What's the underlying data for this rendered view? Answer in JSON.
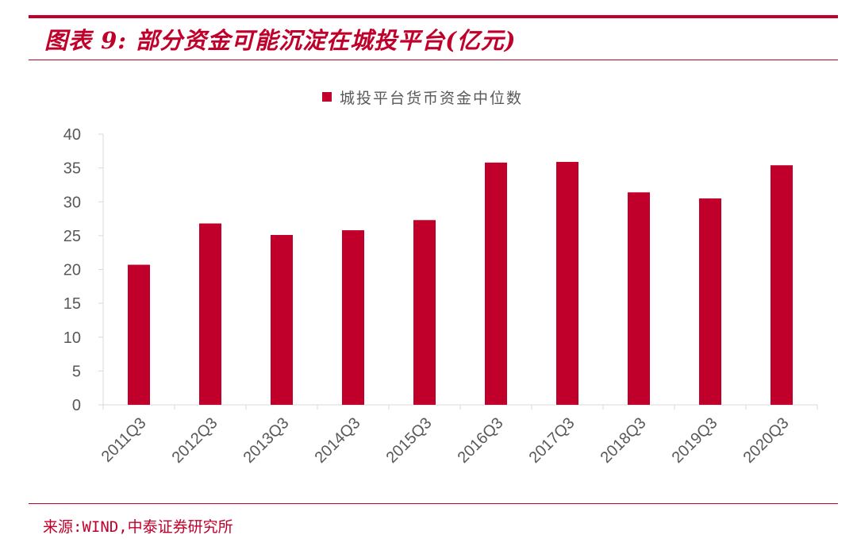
{
  "header": {
    "title": "图表 9:  部分资金可能沉淀在城投平台(亿元)"
  },
  "footer": {
    "source": "来源:WIND,中泰证券研究所"
  },
  "colors": {
    "accent": "#c0002a",
    "bar": "#c0002a",
    "axis": "#d9d9d9",
    "text": "#595959"
  },
  "chart_data": {
    "type": "bar",
    "title": "",
    "xlabel": "",
    "ylabel": "",
    "categories": [
      "2011Q3",
      "2012Q3",
      "2013Q3",
      "2014Q3",
      "2015Q3",
      "2016Q3",
      "2017Q3",
      "2018Q3",
      "2019Q3",
      "2020Q3"
    ],
    "series": [
      {
        "name": "城投平台货币资金中位数",
        "values": [
          20.7,
          26.8,
          25.1,
          25.8,
          27.3,
          35.8,
          35.9,
          31.4,
          30.5,
          35.4
        ]
      }
    ],
    "ylim": [
      0,
      40
    ],
    "yticks": [
      0,
      5,
      10,
      15,
      20,
      25,
      30,
      35,
      40
    ],
    "legend": "top-center",
    "grid": false
  }
}
